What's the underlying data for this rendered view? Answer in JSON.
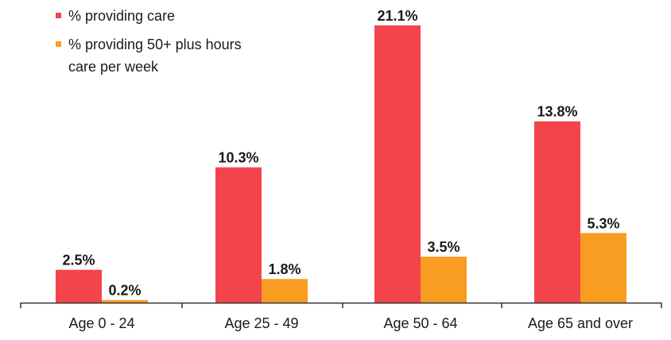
{
  "chart_data": {
    "type": "bar",
    "title": "",
    "xlabel": "",
    "ylabel": "",
    "ylim": [
      0,
      21.1
    ],
    "grid": false,
    "legend_placement": "top-left",
    "categories": [
      "Age 0 - 24",
      "Age 25 - 49",
      "Age 50 - 64",
      "Age 65 and over"
    ],
    "series": [
      {
        "name": "% providing care",
        "color": "#f4444b",
        "values": [
          2.5,
          10.3,
          21.1,
          13.8
        ],
        "labels": [
          "2.5%",
          "10.3%",
          "21.1%",
          "13.8%"
        ]
      },
      {
        "name": "% providing 50+ plus hours care per week",
        "color": "#f99c22",
        "values": [
          0.2,
          1.8,
          3.5,
          5.3
        ],
        "labels": [
          "0.2%",
          "1.8%",
          "3.5%",
          "5.3%"
        ]
      }
    ]
  }
}
